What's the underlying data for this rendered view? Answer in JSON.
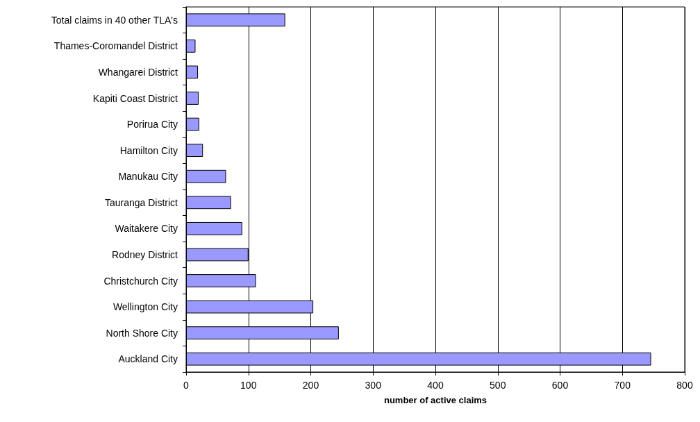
{
  "chart_data": {
    "type": "bar",
    "orientation": "horizontal",
    "xlabel": "number of active claims",
    "categories": [
      "Total claims in 40 other TLA's",
      "Thames-Coromandel District",
      "Whangarei District",
      "Kapiti Coast District",
      "Porirua City",
      "Hamilton City",
      "Manukau City",
      "Tauranga District",
      "Waitakere City",
      "Rodney District",
      "Christchurch City",
      "Wellington City",
      "North Shore City",
      "Auckland City"
    ],
    "values": [
      159,
      15,
      19,
      20,
      21,
      27,
      64,
      72,
      90,
      100,
      112,
      204,
      245,
      746
    ],
    "color": "#9999ff",
    "xlim": [
      0,
      800
    ],
    "xticks": [
      0,
      100,
      200,
      300,
      400,
      500,
      600,
      700,
      800
    ],
    "grid": "x"
  }
}
